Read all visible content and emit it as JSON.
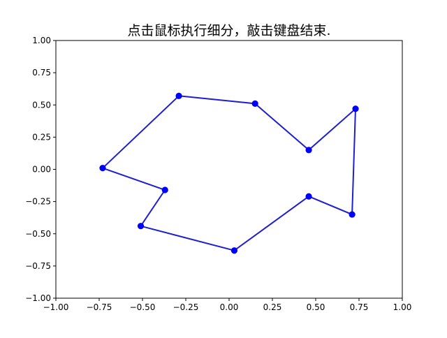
{
  "chart_data": {
    "type": "line",
    "title": "点击鼠标执行细分，敲击键盘结束.",
    "xlabel": "",
    "ylabel": "",
    "xlim": [
      -1.0,
      1.0
    ],
    "ylim": [
      -1.0,
      1.0
    ],
    "grid": false,
    "legend": "none",
    "x_ticks": [
      "−1.00",
      "−0.75",
      "−0.50",
      "−0.25",
      "0.00",
      "0.25",
      "0.50",
      "0.75",
      "1.00"
    ],
    "y_ticks": [
      "1.00",
      "0.75",
      "0.50",
      "0.25",
      "0.00",
      "−0.25",
      "−0.50",
      "−0.75",
      "−1.00"
    ],
    "series": [
      {
        "closed": true,
        "line_color": "#1f1fd0",
        "marker_color": "#0000ff",
        "points": [
          {
            "x": -0.29,
            "y": 0.57
          },
          {
            "x": 0.15,
            "y": 0.51
          },
          {
            "x": 0.46,
            "y": 0.15
          },
          {
            "x": 0.73,
            "y": 0.47
          },
          {
            "x": 0.71,
            "y": -0.35
          },
          {
            "x": 0.46,
            "y": -0.21
          },
          {
            "x": 0.03,
            "y": -0.63
          },
          {
            "x": -0.51,
            "y": -0.44
          },
          {
            "x": -0.37,
            "y": -0.16
          },
          {
            "x": -0.73,
            "y": 0.01
          }
        ]
      }
    ]
  }
}
